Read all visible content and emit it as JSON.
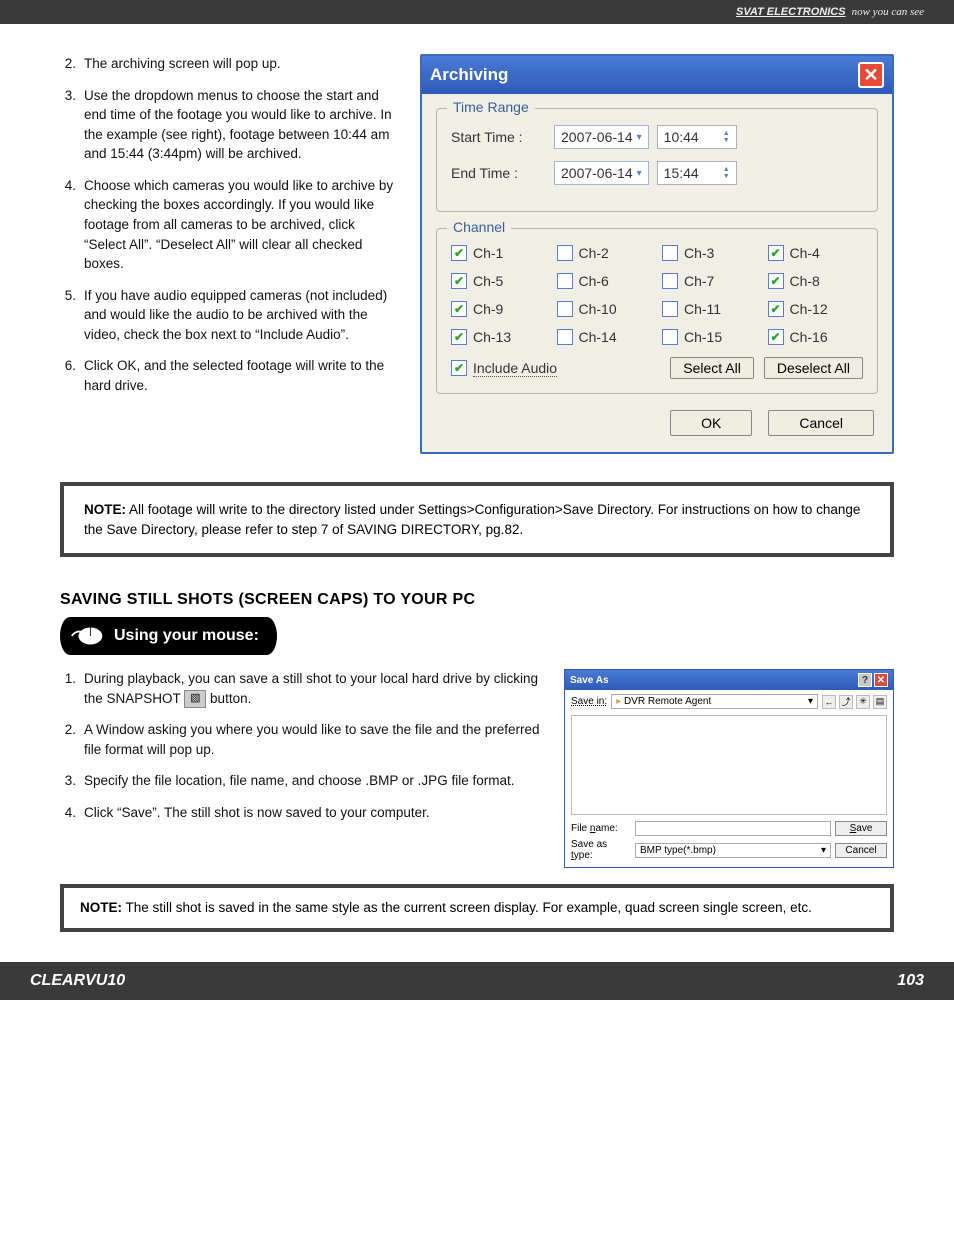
{
  "header": {
    "brand": "SVAT ELECTRONICS",
    "tagline": "now you can see"
  },
  "steps_archiving": [
    {
      "n": "2.",
      "t": "The archiving screen will pop up."
    },
    {
      "n": "3.",
      "t": "Use the dropdown menus to choose the start and end time of the footage you would like to archive.  In the example (see right), footage between 10:44 am and 15:44 (3:44pm) will be archived."
    },
    {
      "n": "4.",
      "t": "Choose which cameras you would like to archive by checking the boxes accordingly.  If you would like footage from all cameras to be archived, click “Select All”.  “Deselect All” will clear all checked boxes."
    },
    {
      "n": "5.",
      "t": "If you have audio equipped cameras (not included) and would like the audio to be archived with the video, check the box next to “Include Audio”."
    },
    {
      "n": "6.",
      "t": "Click OK, and the selected footage will write to the hard drive."
    }
  ],
  "note1": {
    "lead": "NOTE:",
    "text": "All footage will write to the directory listed under Settings>Configuration>Save Directory.  For instructions on how to change the Save Directory, please refer to step 7 of SAVING DIRECTORY, pg.82."
  },
  "section2_title": "SAVING STILL SHOTS (SCREEN CAPS) TO YOUR PC",
  "mouse_label": "Using your mouse:",
  "steps_save": [
    {
      "n": "1.",
      "pre": "During playback, you can save a still shot to your local hard drive by clicking the SNAPSHOT ",
      "post": " button."
    },
    {
      "n": "2.",
      "t": "A Window asking you where you would like to save the file and the preferred file format will pop up."
    },
    {
      "n": "3.",
      "t": "Specify the file location, file name, and choose .BMP or .JPG file format."
    },
    {
      "n": "4.",
      "t": "Click “Save”.  The still shot is now saved to your computer."
    }
  ],
  "note2": {
    "lead": "NOTE:",
    "text": "The still shot is saved in the same style as the current screen display.  For example, quad screen single screen, etc."
  },
  "dialog": {
    "title": "Archiving",
    "time_legend": "Time Range",
    "start_lbl": "Start Time :",
    "start_date": "2007-06-14",
    "start_time": "10:44",
    "end_lbl": "End Time :",
    "end_date": "2007-06-14",
    "end_time": "15:44",
    "channel_legend": "Channel",
    "channels": [
      {
        "label": "Ch-1",
        "checked": true
      },
      {
        "label": "Ch-2",
        "checked": false
      },
      {
        "label": "Ch-3",
        "checked": false
      },
      {
        "label": "Ch-4",
        "checked": true
      },
      {
        "label": "Ch-5",
        "checked": true
      },
      {
        "label": "Ch-6",
        "checked": false
      },
      {
        "label": "Ch-7",
        "checked": false
      },
      {
        "label": "Ch-8",
        "checked": true
      },
      {
        "label": "Ch-9",
        "checked": true
      },
      {
        "label": "Ch-10",
        "checked": false
      },
      {
        "label": "Ch-11",
        "checked": false
      },
      {
        "label": "Ch-12",
        "checked": true
      },
      {
        "label": "Ch-13",
        "checked": true
      },
      {
        "label": "Ch-14",
        "checked": false
      },
      {
        "label": "Ch-15",
        "checked": false
      },
      {
        "label": "Ch-16",
        "checked": true
      }
    ],
    "include_audio": "Include Audio",
    "include_checked": true,
    "select_all": "Select All",
    "deselect_all": "Deselect All",
    "ok": "OK",
    "cancel": "Cancel"
  },
  "saveas": {
    "title": "Save As",
    "savein_lbl": "Save in:",
    "folder": "DVR Remote Agent",
    "filename_lbl": "File name:",
    "filename": "",
    "type_lbl": "Save as type:",
    "type": "BMP type(*.bmp)",
    "save_btn": "Save",
    "cancel_btn": "Cancel"
  },
  "footer": {
    "model": "CLEARVU10",
    "page": "103"
  },
  "colors": {
    "titlebar": "#3a6bbf",
    "dialog_bg": "#f1efe5",
    "check_green": "#2aa62a",
    "footer_bg": "#3a3a3a"
  }
}
